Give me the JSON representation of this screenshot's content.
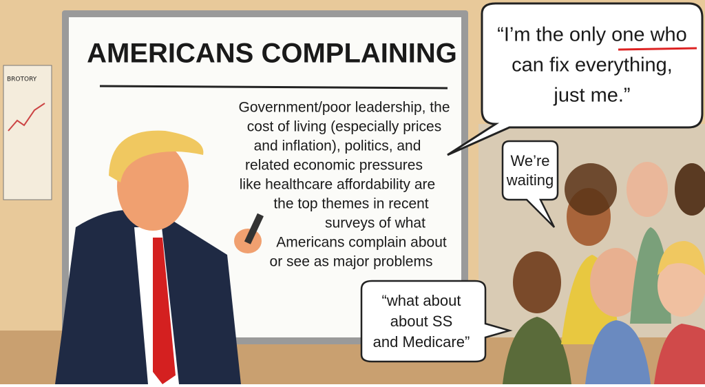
{
  "poster": {
    "label": "BROTORY"
  },
  "whiteboard": {
    "title": "AMERICANS COMPLAINING",
    "lines": [
      "Government/poor leadership, the",
      "cost of living (especially prices",
      "and inflation),   politics, and",
      "related economic pressures",
      "like healthcare affordability are",
      "the top themes in recent",
      "surveys of what",
      "Americans complain about",
      "or see as major problems"
    ]
  },
  "bubbles": {
    "speaker": [
      "“I’m the only one who",
      "can fix everything,",
      "just me.”"
    ],
    "waiting": [
      "We’re",
      "waiting"
    ],
    "question": [
      "“what about",
      "about SS",
      "and Medicare”"
    ]
  }
}
